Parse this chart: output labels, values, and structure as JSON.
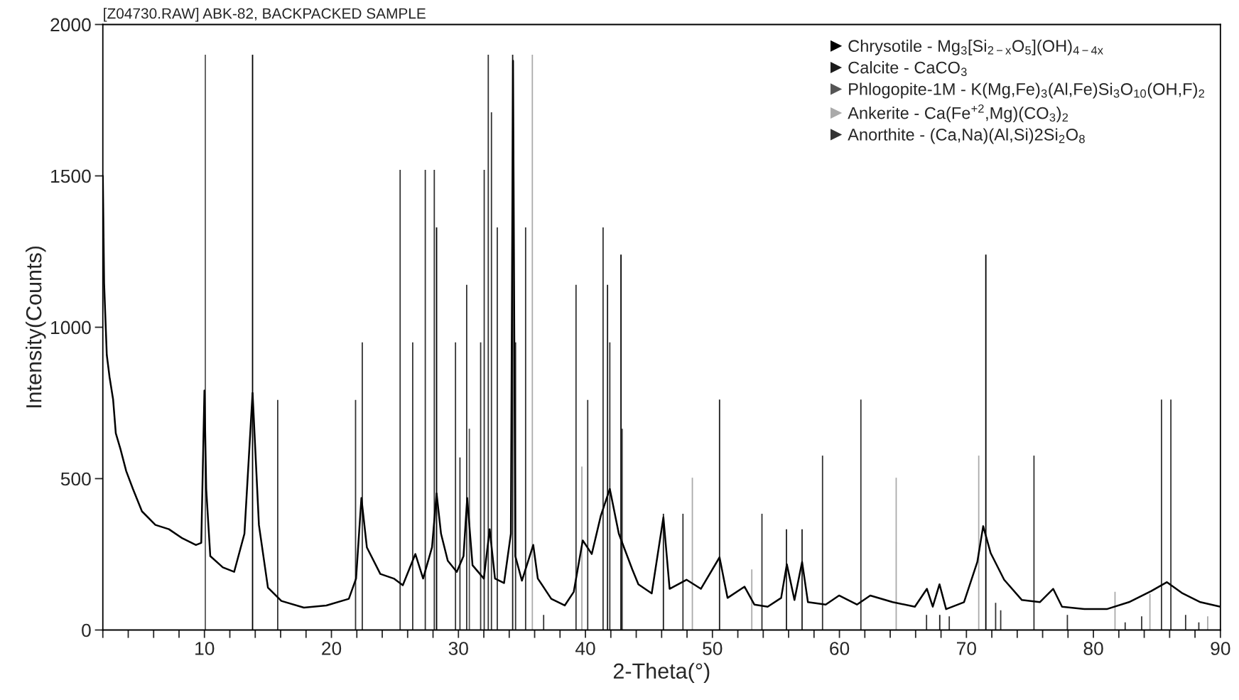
{
  "chart_data": {
    "type": "line",
    "title": "[Z04730.RAW] ABK-82, BACKPACKED SAMPLE",
    "xlabel": "2-Theta(°)",
    "ylabel": "Intensity(Counts)",
    "xlim": [
      2,
      90
    ],
    "ylim": [
      0,
      2000
    ],
    "xticks": [
      {
        "value": 2,
        "label": null
      },
      {
        "value": 4,
        "label": null
      },
      {
        "value": 6,
        "label": null
      },
      {
        "value": 8,
        "label": null
      },
      10,
      {
        "value": 12,
        "label": null
      },
      {
        "value": 14,
        "label": null
      },
      {
        "value": 16,
        "label": null
      },
      {
        "value": 18,
        "label": null
      },
      20,
      {
        "value": 22,
        "label": null
      },
      {
        "value": 24,
        "label": null
      },
      {
        "value": 26,
        "label": null
      },
      {
        "value": 28,
        "label": null
      },
      30,
      {
        "value": 32,
        "label": null
      },
      {
        "value": 34,
        "label": null
      },
      {
        "value": 36,
        "label": null
      },
      {
        "value": 38,
        "label": null
      },
      40,
      {
        "value": 42,
        "label": null
      },
      {
        "value": 44,
        "label": null
      },
      {
        "value": 46,
        "label": null
      },
      {
        "value": 48,
        "label": null
      },
      50,
      {
        "value": 52,
        "label": null
      },
      {
        "value": 54,
        "label": null
      },
      {
        "value": 56,
        "label": null
      },
      {
        "value": 58,
        "label": null
      },
      60,
      {
        "value": 62,
        "label": null
      },
      {
        "value": 64,
        "label": null
      },
      {
        "value": 66,
        "label": null
      },
      {
        "value": 68,
        "label": null
      },
      70,
      {
        "value": 72,
        "label": null
      },
      {
        "value": 74,
        "label": null
      },
      {
        "value": 76,
        "label": null
      },
      {
        "value": 78,
        "label": null
      },
      80,
      {
        "value": 82,
        "label": null
      },
      {
        "value": 84,
        "label": null
      },
      {
        "value": 86,
        "label": null
      },
      {
        "value": 88,
        "label": null
      },
      90
    ],
    "yticks": [
      0,
      500,
      1000,
      1500,
      2000
    ],
    "grid": false,
    "legend": "top right",
    "series": [
      {
        "color": "#000000",
        "x": [
          2.0,
          2.1,
          2.31,
          2.53,
          2.81,
          3.02,
          3.38,
          3.84,
          4.37,
          5.08,
          6.14,
          7.2,
          8.26,
          9.33,
          9.75,
          10.0,
          10.14,
          10.46,
          11.45,
          12.34,
          13.15,
          13.79,
          14.29,
          15.0,
          16.06,
          17.83,
          19.6,
          21.37,
          21.94,
          22.36,
          22.79,
          23.85,
          24.91,
          25.62,
          26.61,
          27.22,
          27.92,
          28.28,
          28.63,
          29.16,
          29.87,
          30.4,
          30.69,
          31.11,
          32.0,
          32.46,
          32.88,
          33.59,
          34.13,
          34.3,
          34.48,
          35.0,
          35.89,
          36.25,
          37.31,
          38.37,
          39.08,
          39.79,
          40.5,
          41.21,
          41.92,
          42.63,
          43.69,
          44.17,
          45.22,
          46.14,
          46.63,
          47.96,
          49.09,
          50.56,
          51.19,
          52.53,
          53.3,
          54.35,
          55.41,
          55.86,
          56.46,
          57.06,
          57.52,
          58.92,
          59.97,
          61.38,
          62.43,
          64.19,
          65.94,
          66.89,
          67.35,
          67.88,
          68.4,
          69.81,
          70.86,
          71.32,
          71.91,
          72.97,
          74.37,
          75.78,
          76.83,
          77.53,
          79.29,
          81.05,
          82.8,
          84.56,
          85.79,
          87.02,
          88.42,
          90.0
        ],
        "values": [
          1500,
          1146,
          909,
          835,
          761,
          650,
          599,
          525,
          466,
          392,
          347,
          333,
          303,
          281,
          288,
          791,
          466,
          244,
          207,
          192,
          318,
          783,
          347,
          140,
          96,
          74,
          81,
          103,
          170,
          436,
          273,
          185,
          170,
          148,
          251,
          170,
          273,
          451,
          318,
          229,
          192,
          244,
          436,
          214,
          170,
          333,
          170,
          155,
          318,
          1880,
          244,
          163,
          281,
          170,
          103,
          81,
          126,
          296,
          251,
          377,
          466,
          318,
          200,
          151,
          121,
          372,
          136,
          166,
          136,
          240,
          106,
          143,
          84,
          77,
          106,
          217,
          99,
          225,
          92,
          84,
          114,
          84,
          114,
          92,
          77,
          136,
          77,
          151,
          69,
          92,
          225,
          343,
          254,
          166,
          99,
          92,
          136,
          77,
          69,
          69,
          92,
          129,
          158,
          121,
          92,
          77
        ]
      },
      {
        "type": "bar",
        "name": "Chrysotile - Mg$_{3}$[Si$_{2−x}$O$_{5}$](OH)$_{4−4x}$",
        "color": "#000000",
        "x": [
          13.79,
          28.28,
          42.8,
          71.53
        ],
        "values": [
          1900,
          1330,
          1240,
          1240
        ]
      },
      {
        "type": "bar",
        "name": "Calcite - CaCO$_{3}$",
        "color": "#1c1c1c",
        "x": [
          34.27,
          41.74,
          46.14,
          50.56,
          55.83,
          57.06,
          67.9
        ],
        "values": [
          1900,
          1140,
          384,
          761,
          333,
          333,
          50
        ]
      },
      {
        "type": "bar",
        "name": "Phlogopite-1M - K(Mg,Fe)$_{3}$(Al,Fe)Si$_{3}$O$_{10}$(OH,F)$_{2}$",
        "color": "#555555",
        "x": [
          10.07,
          30.86,
          42.9
        ],
        "values": [
          1900,
          665,
          665
        ]
      },
      {
        "type": "bar",
        "name": "Ankerite - Ca(Fe$^{+2}$,Mg)(CO$_{3}$)$_{2}$",
        "color": "#aaaaaa",
        "x": [
          35.82,
          39.72,
          48.42,
          53.1,
          64.47,
          70.97,
          81.7,
          84.45,
          89.0
        ],
        "values": [
          1900,
          540,
          503,
          200,
          503,
          576,
          126,
          120,
          45
        ]
      },
      {
        "type": "bar",
        "name": "Anorthite - (Ca,Na)(Al,Si)2Si$_{2}$O$_{8}$",
        "color": "#333333",
        "x": [
          15.77,
          21.9,
          22.43,
          25.41,
          26.4,
          27.39,
          28.1,
          29.77,
          30.12,
          30.65,
          31.75,
          32.03,
          32.35,
          32.6,
          33.06,
          34.5,
          35.29,
          36.71,
          39.26,
          40.18,
          41.39,
          41.92,
          47.68,
          53.9,
          58.67,
          61.69,
          66.86,
          68.65,
          72.3,
          72.7,
          75.32,
          77.95,
          82.5,
          83.8,
          85.36,
          86.1,
          87.26,
          88.3
        ],
        "values": [
          760,
          760,
          950,
          1520,
          950,
          1520,
          1520,
          950,
          570,
          1140,
          950,
          1520,
          1900,
          1710,
          1330,
          950,
          1330,
          50,
          1140,
          760,
          1330,
          950,
          384,
          384,
          576,
          761,
          50,
          45,
          90,
          65,
          576,
          50,
          25,
          45,
          761,
          761,
          50,
          25
        ]
      }
    ]
  }
}
